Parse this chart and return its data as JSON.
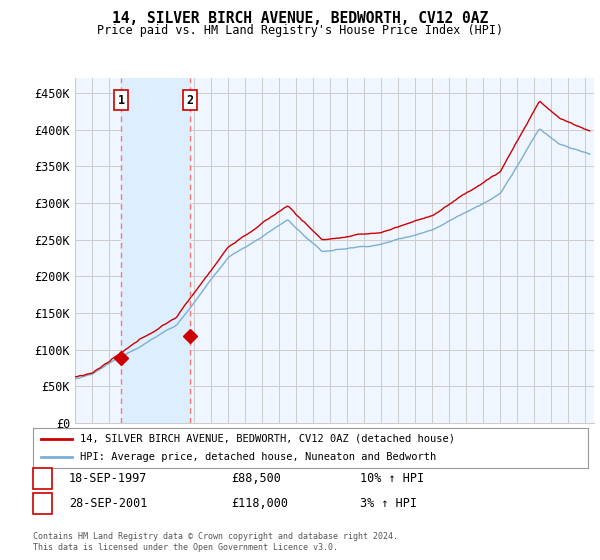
{
  "title": "14, SILVER BIRCH AVENUE, BEDWORTH, CV12 0AZ",
  "subtitle": "Price paid vs. HM Land Registry's House Price Index (HPI)",
  "yticks": [
    0,
    50000,
    100000,
    150000,
    200000,
    250000,
    300000,
    350000,
    400000,
    450000
  ],
  "ylim": [
    0,
    470000
  ],
  "xlim_start": 1995.0,
  "xlim_end": 2025.5,
  "sale1_date": 1997.72,
  "sale1_price": 88500,
  "sale2_date": 2001.74,
  "sale2_price": 118000,
  "sale1_date_str": "18-SEP-1997",
  "sale2_date_str": "28-SEP-2001",
  "hpi_color": "#7bafd4",
  "price_color": "#cc0000",
  "dashed_color": "#ff7777",
  "shade_color": "#ddeeff",
  "background_color": "#ffffff",
  "plot_bg_color": "#f0f6ff",
  "grid_color": "#cccccc",
  "legend_label1": "14, SILVER BIRCH AVENUE, BEDWORTH, CV12 0AZ (detached house)",
  "legend_label2": "HPI: Average price, detached house, Nuneaton and Bedworth",
  "footer1": "Contains HM Land Registry data © Crown copyright and database right 2024.",
  "footer2": "This data is licensed under the Open Government Licence v3.0."
}
